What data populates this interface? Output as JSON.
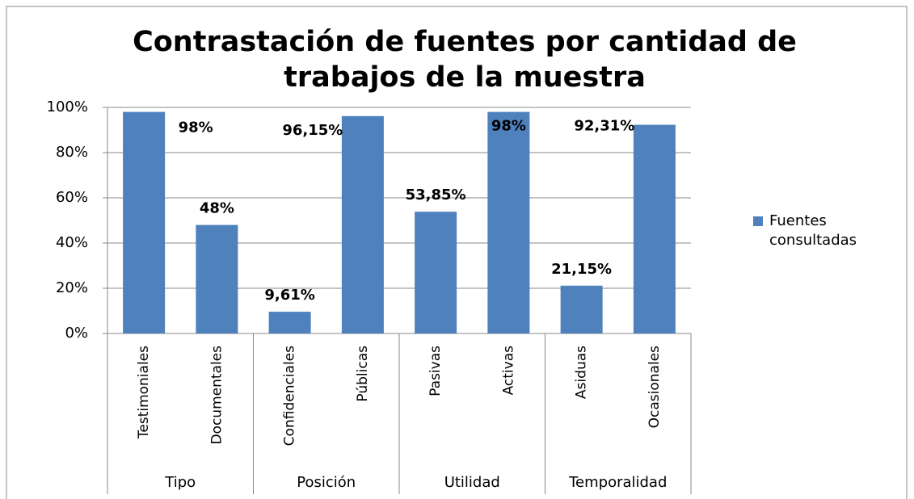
{
  "chart_data": {
    "type": "bar",
    "title": "Contrastación de fuentes por cantidad de trabajos de la muestra",
    "categories": [
      "Testimoniales",
      "Documentales",
      "Confidenciales",
      "Públicas",
      "Pasivas",
      "Activas",
      "Asiduas",
      "Ocasionales"
    ],
    "groups": [
      "Tipo",
      "Posición",
      "Utilidad",
      "Temporalidad"
    ],
    "series": [
      {
        "name": "Fuentes consultadas",
        "color": "#4f81bd",
        "values": [
          98,
          48,
          9.61,
          96.15,
          53.85,
          98,
          21.15,
          92.31
        ],
        "value_labels": [
          "98%",
          "48%",
          "9,61%",
          "96,15%",
          "53,85%",
          "98%",
          "21,15%",
          "92,31%"
        ]
      }
    ],
    "ylim": [
      0,
      100
    ],
    "yticks": [
      {
        "value": 0,
        "label": "0%"
      },
      {
        "value": 20,
        "label": "20%"
      },
      {
        "value": 40,
        "label": "40%"
      },
      {
        "value": 60,
        "label": "60%"
      },
      {
        "value": 80,
        "label": "80%"
      },
      {
        "value": 100,
        "label": "100%"
      }
    ],
    "grid": true,
    "legend": "right"
  }
}
